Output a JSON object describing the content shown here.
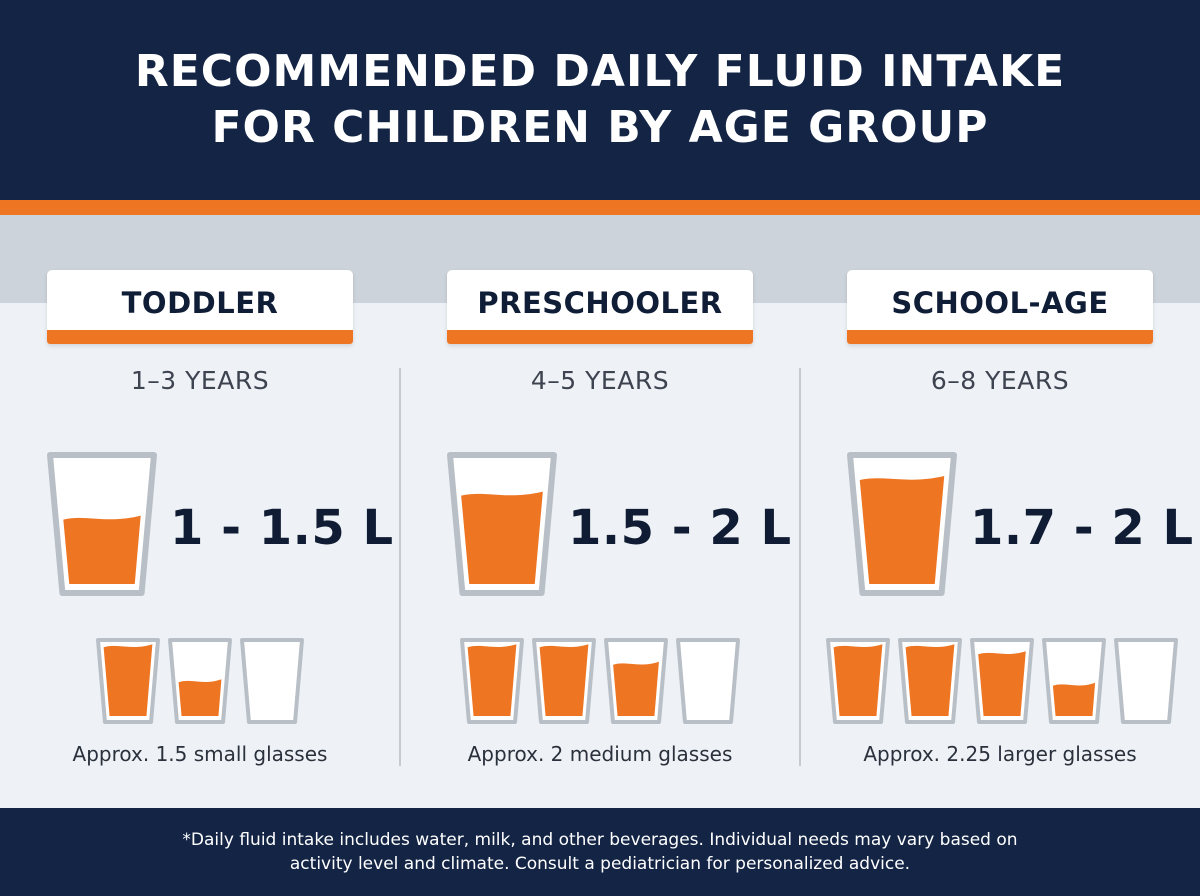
{
  "header": {
    "title_line1": "RECOMMENDED DAILY FLUID INTAKE",
    "title_line2": "FOR CHILDREN BY AGE GROUP"
  },
  "groups": [
    {
      "label": "TODDLER",
      "age_range": "1–3 YEARS",
      "amount": "1 - 1.5 L",
      "big_glass_fill": 0.55,
      "small_glass_fills": [
        1,
        0.5,
        0
      ],
      "approx_text": "Approx. 1.5 small glasses"
    },
    {
      "label": "PRESCHOOLER",
      "age_range": "4–5 YEARS",
      "amount": "1.5 - 2 L",
      "big_glass_fill": 0.75,
      "small_glass_fills": [
        1,
        1,
        0.75,
        0
      ],
      "approx_text": "Approx. 2 medium glasses"
    },
    {
      "label": "SCHOOL-AGE",
      "age_range": "6–8 YEARS",
      "amount": "1.7 - 2 L",
      "big_glass_fill": 0.88,
      "small_glass_fills": [
        1,
        1,
        0.9,
        0.45,
        0
      ],
      "approx_text": "Approx. 2.25 larger glasses"
    }
  ],
  "footer": {
    "note_line1": "*Daily fluid intake includes water, milk, and other beverages. Individual needs may vary based on",
    "note_line2": "activity level and climate. Consult a pediatrician for personalized advice."
  },
  "colors": {
    "navy": "#132445",
    "orange": "#ee7623",
    "glass_outline": "#b9bfc7",
    "glass_inner": "#ffffff"
  }
}
